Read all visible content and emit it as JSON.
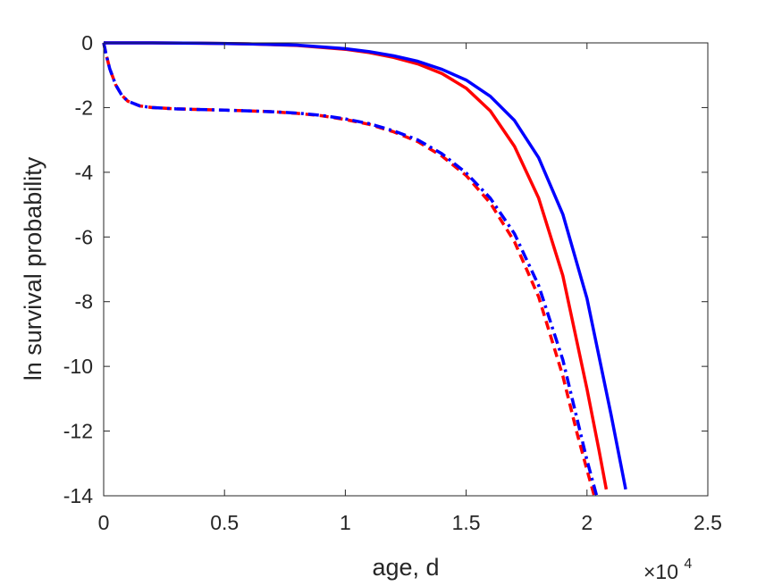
{
  "chart_data": {
    "type": "line",
    "xlabel": "age, d",
    "ylabel": "ln survival probability",
    "x_multiplier_label": "×10",
    "x_multiplier_exponent": "4",
    "xlim": [
      0,
      25000
    ],
    "ylim": [
      -14,
      0
    ],
    "xticks": [
      0,
      5000,
      10000,
      15000,
      20000,
      25000
    ],
    "xtick_labels": [
      "0",
      "0.5",
      "1",
      "1.5",
      "2",
      "2.5"
    ],
    "yticks": [
      0,
      -2,
      -4,
      -6,
      -8,
      -10,
      -12,
      -14
    ],
    "ytick_labels": [
      "0",
      "-2",
      "-4",
      "-6",
      "-8",
      "-10",
      "-12",
      "-14"
    ],
    "grid": false,
    "series": [
      {
        "color": "#ff0000",
        "style": "solid",
        "x": [
          0,
          2000,
          4000,
          6000,
          8000,
          10000,
          11000,
          12000,
          13000,
          14000,
          15000,
          16000,
          17000,
          18000,
          19000,
          20000,
          20500,
          20800
        ],
        "y": [
          0,
          0,
          -0.01,
          -0.03,
          -0.08,
          -0.2,
          -0.3,
          -0.45,
          -0.65,
          -0.95,
          -1.4,
          -2.1,
          -3.2,
          -4.8,
          -7.2,
          -10.7,
          -12.6,
          -13.8
        ]
      },
      {
        "color": "#0000ff",
        "style": "solid",
        "x": [
          0,
          2000,
          4000,
          6000,
          8000,
          10000,
          11000,
          12000,
          13000,
          14000,
          15000,
          16000,
          17000,
          18000,
          19000,
          20000,
          21000,
          21600
        ],
        "y": [
          0,
          0,
          -0.01,
          -0.03,
          -0.07,
          -0.18,
          -0.27,
          -0.4,
          -0.57,
          -0.82,
          -1.15,
          -1.65,
          -2.4,
          -3.55,
          -5.3,
          -7.9,
          -11.5,
          -13.8
        ]
      },
      {
        "color": "#ff0000",
        "style": "dashed",
        "x": [
          0,
          100,
          250,
          500,
          750,
          1000,
          1500,
          2000,
          3000,
          4000,
          5000,
          6000,
          7000,
          8000,
          9000,
          10000,
          11000,
          12000,
          13000,
          14000,
          15000,
          16000,
          17000,
          18000,
          19000,
          19600,
          20000,
          20300
        ],
        "y": [
          0,
          -0.35,
          -0.8,
          -1.3,
          -1.62,
          -1.8,
          -1.95,
          -2.0,
          -2.04,
          -2.06,
          -2.08,
          -2.1,
          -2.13,
          -2.18,
          -2.25,
          -2.37,
          -2.52,
          -2.75,
          -3.05,
          -3.5,
          -4.1,
          -4.95,
          -6.15,
          -7.85,
          -10.3,
          -12.1,
          -13.2,
          -14.0
        ]
      },
      {
        "color": "#0000ff",
        "style": "dashdot",
        "x": [
          0,
          100,
          250,
          500,
          750,
          1000,
          1500,
          2000,
          3000,
          4000,
          5000,
          6000,
          7000,
          8000,
          9000,
          10000,
          11000,
          12000,
          13000,
          14000,
          15000,
          16000,
          17000,
          18000,
          19000,
          20000,
          20400
        ],
        "y": [
          0,
          -0.35,
          -0.8,
          -1.3,
          -1.62,
          -1.8,
          -1.95,
          -2.0,
          -2.04,
          -2.06,
          -2.08,
          -2.1,
          -2.13,
          -2.17,
          -2.24,
          -2.35,
          -2.5,
          -2.72,
          -3.0,
          -3.43,
          -4.02,
          -4.8,
          -5.9,
          -7.5,
          -9.8,
          -12.9,
          -14.0
        ]
      }
    ]
  }
}
